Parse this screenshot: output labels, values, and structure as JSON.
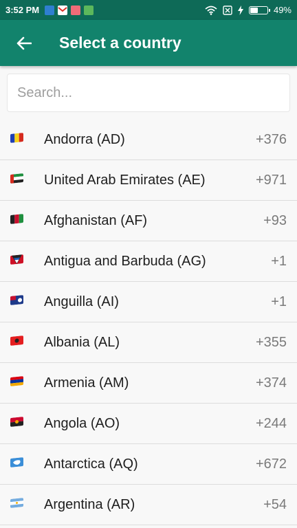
{
  "status_bar": {
    "time": "3:52 PM",
    "battery_percent": "49%",
    "battery_level": 0.49,
    "notification_icons": [
      "vpn-key-icon",
      "gmail-icon",
      "photo-app-icon",
      "robot-app-icon"
    ],
    "right_icons": [
      "wifi-icon",
      "no-sim-icon",
      "charging-bolt-icon",
      "battery-icon"
    ]
  },
  "app_bar": {
    "title": "Select a country",
    "back_icon": "arrow-left-icon",
    "color": "#12836c"
  },
  "search": {
    "placeholder": "Search...",
    "value": ""
  },
  "countries": [
    {
      "name": "Andorra (AD)",
      "code": "+376",
      "flag": "flag-ad"
    },
    {
      "name": "United Arab Emirates (AE)",
      "code": "+971",
      "flag": "flag-ae"
    },
    {
      "name": "Afghanistan (AF)",
      "code": "+93",
      "flag": "flag-af"
    },
    {
      "name": "Antigua and Barbuda (AG)",
      "code": "+1",
      "flag": "flag-ag"
    },
    {
      "name": "Anguilla (AI)",
      "code": "+1",
      "flag": "flag-ai"
    },
    {
      "name": "Albania (AL)",
      "code": "+355",
      "flag": "flag-al"
    },
    {
      "name": "Armenia (AM)",
      "code": "+374",
      "flag": "flag-am"
    },
    {
      "name": "Angola (AO)",
      "code": "+244",
      "flag": "flag-ao"
    },
    {
      "name": "Antarctica (AQ)",
      "code": "+672",
      "flag": "flag-aq"
    },
    {
      "name": "Argentina (AR)",
      "code": "+54",
      "flag": "flag-ar"
    }
  ]
}
